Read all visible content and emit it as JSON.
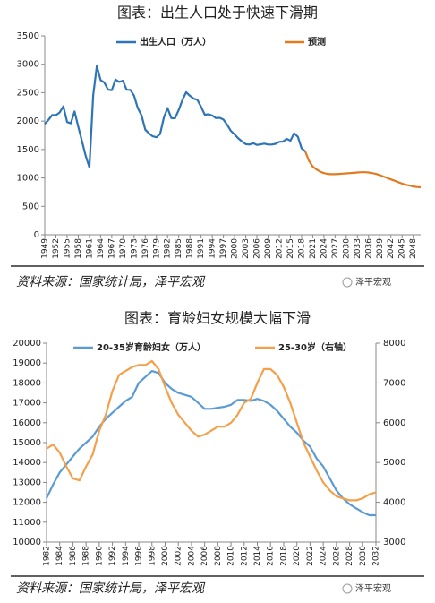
{
  "chart_data": [
    {
      "type": "line",
      "title": "图表：出生人口处于快速下滑期",
      "x": [
        1949,
        1950,
        1951,
        1952,
        1953,
        1954,
        1955,
        1956,
        1957,
        1958,
        1959,
        1960,
        1961,
        1962,
        1963,
        1964,
        1965,
        1966,
        1967,
        1968,
        1969,
        1970,
        1971,
        1972,
        1973,
        1974,
        1975,
        1976,
        1977,
        1978,
        1979,
        1980,
        1981,
        1982,
        1983,
        1984,
        1985,
        1986,
        1987,
        1988,
        1989,
        1990,
        1991,
        1992,
        1993,
        1994,
        1995,
        1996,
        1997,
        1998,
        1999,
        2000,
        2001,
        2002,
        2003,
        2004,
        2005,
        2006,
        2007,
        2008,
        2009,
        2010,
        2011,
        2012,
        2013,
        2014,
        2015,
        2016,
        2017,
        2018,
        2019,
        2020,
        2021,
        2022,
        2023,
        2024,
        2025,
        2026,
        2027,
        2028,
        2029,
        2030,
        2031,
        2032,
        2033,
        2034,
        2035,
        2036,
        2037,
        2038,
        2039,
        2040,
        2041,
        2042,
        2043,
        2044,
        2045,
        2046,
        2047,
        2048,
        2049,
        2050
      ],
      "series": [
        {
          "name": "出生人口（万人）",
          "color": "#2e75b6",
          "values": [
            1950,
            2023,
            2107,
            2105,
            2151,
            2260,
            1984,
            1961,
            2169,
            1905,
            1647,
            1389,
            1187,
            2451,
            2970,
            2721,
            2679,
            2554,
            2543,
            2731,
            2690,
            2710,
            2551,
            2550,
            2447,
            2226,
            2102,
            1849,
            1783,
            1733,
            1715,
            1776,
            2064,
            2230,
            2052,
            2050,
            2196,
            2374,
            2508,
            2445,
            2396,
            2374,
            2250,
            2113,
            2120,
            2098,
            2052,
            2057,
            2028,
            1934,
            1827,
            1765,
            1696,
            1641,
            1594,
            1588,
            1612,
            1581,
            1591,
            1604,
            1587,
            1588,
            1600,
            1635,
            1640,
            1687,
            1655,
            1786,
            1723,
            1523,
            1465,
            null,
            null,
            null,
            null,
            null,
            null,
            null,
            null,
            null,
            null,
            null,
            null,
            null,
            null,
            null,
            null,
            null,
            null,
            null,
            null,
            null,
            null,
            null,
            null,
            null,
            null,
            null,
            null,
            null,
            null,
            null
          ]
        },
        {
          "name": "预测",
          "color": "#e07b20",
          "values": [
            null,
            null,
            null,
            null,
            null,
            null,
            null,
            null,
            null,
            null,
            null,
            null,
            null,
            null,
            null,
            null,
            null,
            null,
            null,
            null,
            null,
            null,
            null,
            null,
            null,
            null,
            null,
            null,
            null,
            null,
            null,
            null,
            null,
            null,
            null,
            null,
            null,
            null,
            null,
            null,
            null,
            null,
            null,
            null,
            null,
            null,
            null,
            null,
            null,
            null,
            null,
            null,
            null,
            null,
            null,
            null,
            null,
            null,
            null,
            null,
            null,
            null,
            null,
            null,
            null,
            null,
            null,
            null,
            null,
            null,
            1465,
            1300,
            1200,
            1150,
            1110,
            1085,
            1070,
            1065,
            1065,
            1070,
            1075,
            1080,
            1085,
            1090,
            1095,
            1100,
            1100,
            1095,
            1085,
            1070,
            1050,
            1025,
            1000,
            975,
            950,
            925,
            900,
            880,
            865,
            850,
            840,
            835
          ]
        }
      ],
      "xlim": [
        1949,
        2050
      ],
      "xticks": [
        1949,
        1952,
        1955,
        1958,
        1961,
        1964,
        1967,
        1970,
        1973,
        1976,
        1979,
        1982,
        1985,
        1988,
        1991,
        1994,
        1997,
        2000,
        2003,
        2006,
        2009,
        2012,
        2015,
        2018,
        2021,
        2024,
        2027,
        2030,
        2033,
        2036,
        2039,
        2042,
        2045,
        2048
      ],
      "ylim": [
        0,
        3500
      ],
      "yticks": [
        0,
        500,
        1000,
        1500,
        2000,
        2500,
        3000,
        3500
      ],
      "grid": false,
      "legend": "top",
      "source": "资料来源：国家统计局，泽平宏观",
      "watermark": "泽平宏观"
    },
    {
      "type": "line",
      "title": "图表：育龄妇女规模大幅下滑",
      "x": [
        1982,
        1983,
        1984,
        1985,
        1986,
        1987,
        1988,
        1989,
        1990,
        1991,
        1992,
        1993,
        1994,
        1995,
        1996,
        1997,
        1998,
        1999,
        2000,
        2001,
        2002,
        2003,
        2004,
        2005,
        2006,
        2007,
        2008,
        2009,
        2010,
        2011,
        2012,
        2013,
        2014,
        2015,
        2016,
        2017,
        2018,
        2019,
        2020,
        2021,
        2022,
        2023,
        2024,
        2025,
        2026,
        2027,
        2028,
        2029,
        2030,
        2031,
        2032
      ],
      "series": [
        {
          "name": "20-35岁育龄妇女（万人）",
          "color": "#5b9bd5",
          "values": [
            12200,
            12900,
            13500,
            13900,
            14300,
            14700,
            15000,
            15300,
            15800,
            16200,
            16500,
            16800,
            17100,
            17300,
            18000,
            18300,
            18600,
            18500,
            18000,
            17700,
            17500,
            17400,
            17300,
            17000,
            16700,
            16700,
            16750,
            16800,
            16900,
            17150,
            17150,
            17100,
            17200,
            17100,
            16900,
            16600,
            16200,
            15800,
            15500,
            15100,
            14800,
            14200,
            13800,
            13200,
            12600,
            12200,
            11900,
            11700,
            11500,
            11350,
            11350
          ]
        },
        {
          "name": "25-30岁（右轴）",
          "color": "#f4a04a",
          "axis": "y2",
          "values": [
            5350,
            5450,
            5250,
            4900,
            4600,
            4550,
            4900,
            5200,
            5800,
            6200,
            6800,
            7200,
            7300,
            7400,
            7450,
            7450,
            7550,
            7350,
            6900,
            6500,
            6200,
            6000,
            5800,
            5650,
            5700,
            5800,
            5900,
            5900,
            6000,
            6200,
            6500,
            6600,
            7000,
            7350,
            7350,
            7200,
            6900,
            6500,
            6000,
            5500,
            5150,
            4800,
            4500,
            4300,
            4150,
            4100,
            4050,
            4050,
            4100,
            4200,
            4250
          ]
        }
      ],
      "xlim": [
        1982,
        2032
      ],
      "xticks": [
        1982,
        1984,
        1986,
        1988,
        1990,
        1992,
        1994,
        1996,
        1998,
        2000,
        2002,
        2004,
        2006,
        2008,
        2010,
        2012,
        2014,
        2016,
        2018,
        2020,
        2022,
        2024,
        2026,
        2028,
        2030,
        2032
      ],
      "ylim": [
        10000,
        20000
      ],
      "yticks": [
        10000,
        11000,
        12000,
        13000,
        14000,
        15000,
        16000,
        17000,
        18000,
        19000,
        20000
      ],
      "y2lim": [
        3000,
        8000
      ],
      "y2ticks": [
        3000,
        4000,
        5000,
        6000,
        7000,
        8000
      ],
      "grid": false,
      "legend": "top",
      "source": "资料来源：国家统计局，泽平宏观",
      "watermark": "泽平宏观"
    }
  ]
}
